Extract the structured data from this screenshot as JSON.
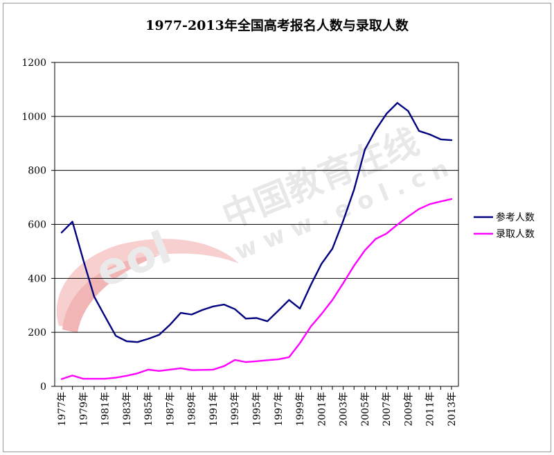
{
  "chart_data": {
    "type": "line",
    "title": "1977-2013年全国高考报名人数与录取人数",
    "xlabel": "",
    "ylabel": "",
    "ylim": [
      0,
      1200
    ],
    "yticks": [
      0,
      200,
      400,
      600,
      800,
      1000,
      1200
    ],
    "grid": true,
    "legend_position": "right",
    "x": [
      1977,
      1978,
      1979,
      1980,
      1981,
      1982,
      1983,
      1984,
      1985,
      1986,
      1987,
      1988,
      1989,
      1990,
      1991,
      1992,
      1993,
      1994,
      1995,
      1996,
      1997,
      1998,
      1999,
      2000,
      2001,
      2002,
      2003,
      2004,
      2005,
      2006,
      2007,
      2008,
      2009,
      2010,
      2011,
      2012,
      2013
    ],
    "x_tick_labels": [
      "1977年",
      "1979年",
      "1981年",
      "1983年",
      "1985年",
      "1987年",
      "1989年",
      "1991年",
      "1993年",
      "1995年",
      "1997年",
      "1999年",
      "2001年",
      "2003年",
      "2005年",
      "2007年",
      "2009年",
      "2011年",
      "2013年"
    ],
    "series": [
      {
        "name": "参考人数",
        "color": "#000080",
        "values": [
          570,
          610,
          468,
          333,
          259,
          187,
          167,
          164,
          176,
          191,
          228,
          272,
          266,
          283,
          296,
          303,
          286,
          251,
          253,
          241,
          280,
          320,
          288,
          375,
          454,
          510,
          613,
          729,
          877,
          950,
          1010,
          1050,
          1020,
          946,
          933,
          915,
          912
        ]
      },
      {
        "name": "录取人数",
        "color": "#ff00ff",
        "values": [
          27,
          40,
          28,
          28,
          28,
          32,
          39,
          48,
          62,
          57,
          62,
          67,
          60,
          61,
          62,
          75,
          98,
          90,
          93,
          97,
          100,
          108,
          160,
          221,
          268,
          320,
          382,
          447,
          504,
          546,
          566,
          599,
          629,
          657,
          675,
          685,
          694
        ]
      }
    ],
    "watermark": {
      "text_cn": "中国教育在线",
      "text_url": "w w w . e o l . c n",
      "logo_text": "eol"
    }
  }
}
